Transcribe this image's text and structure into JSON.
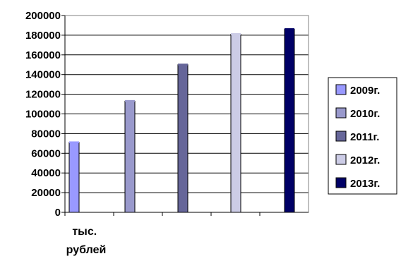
{
  "chart_data": {
    "type": "bar",
    "categories": [
      "тыс. рублей"
    ],
    "category_lines": [
      "тыс.",
      "рублей"
    ],
    "series": [
      {
        "name": "2009г.",
        "values": [
          71000
        ],
        "color": "#9999FF"
      },
      {
        "name": "2010г.",
        "values": [
          113000
        ],
        "color": "#9999CC"
      },
      {
        "name": "2011г.",
        "values": [
          150000
        ],
        "color": "#666699"
      },
      {
        "name": "2012г.",
        "values": [
          181000
        ],
        "color": "#CCCCE6"
      },
      {
        "name": "2013г.",
        "values": [
          186000
        ],
        "color": "#000066"
      }
    ],
    "title": "",
    "xlabel": "",
    "ylabel": "",
    "ylim": [
      0,
      200000
    ],
    "yticks": [
      "0",
      "20000",
      "40000",
      "60000",
      "80000",
      "100000",
      "120000",
      "140000",
      "160000",
      "180000",
      "200000"
    ],
    "grid": true,
    "legend_position": "right"
  }
}
